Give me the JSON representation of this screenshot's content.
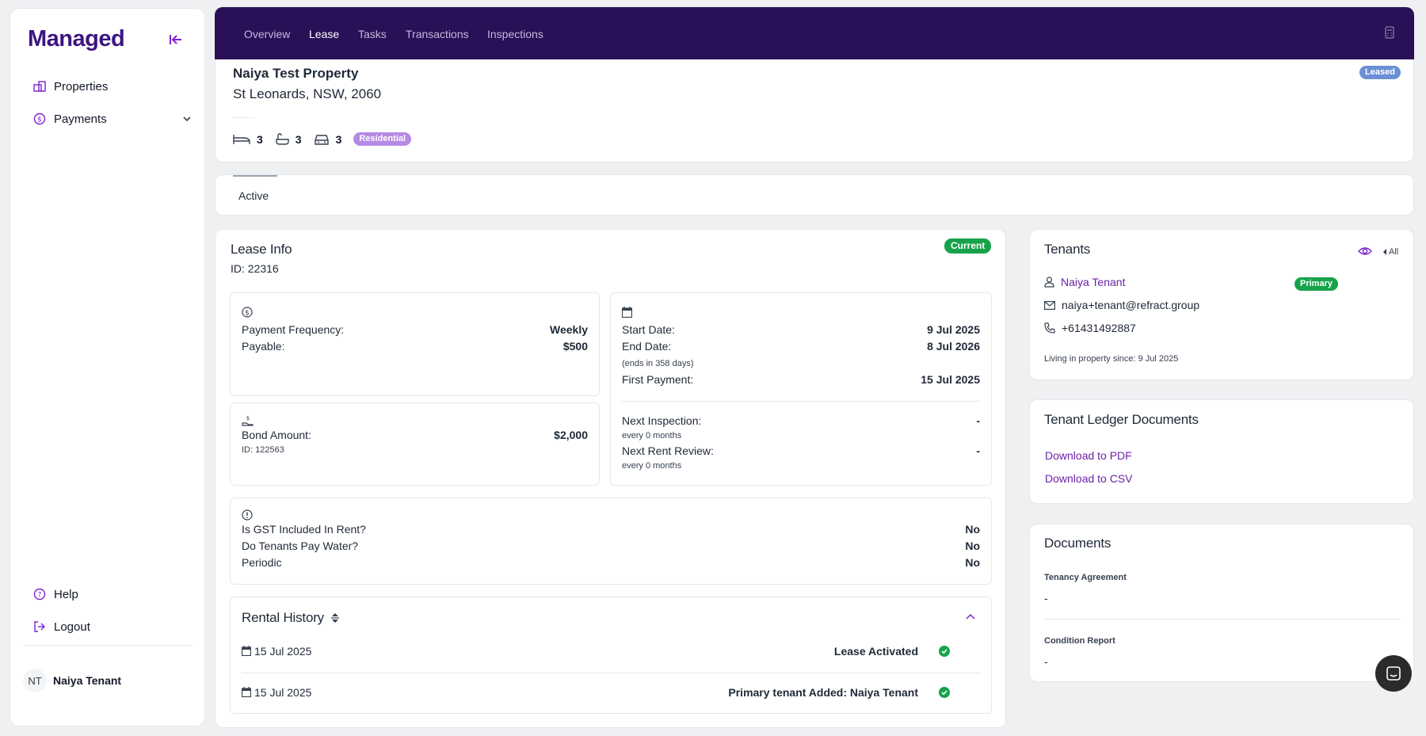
{
  "brand": {
    "logo_text": "Managed"
  },
  "sidebar": {
    "items": [
      {
        "label": "Properties",
        "icon": "properties-icon"
      },
      {
        "label": "Payments",
        "icon": "payments-icon"
      }
    ],
    "bottom_items": [
      {
        "label": "Help",
        "icon": "help-icon"
      },
      {
        "label": "Logout",
        "icon": "logout-icon"
      }
    ],
    "user": {
      "initials": "NT",
      "name": "Naiya Tenant"
    }
  },
  "header": {
    "tabs": [
      "Overview",
      "Lease",
      "Tasks",
      "Transactions",
      "Inspections"
    ],
    "active_tab": "Lease"
  },
  "property": {
    "name": "Naiya Test Property",
    "address": "St Leonards, NSW, 2060",
    "status_badge": "Leased",
    "bedrooms": "3",
    "bathrooms": "3",
    "parking": "3",
    "type_badge": "Residential"
  },
  "lease_tabs": {
    "active": "Active"
  },
  "lease_info": {
    "title": "Lease Info",
    "id_text": "ID: 22316",
    "status_badge": "Current",
    "payment": {
      "frequency_label": "Payment Frequency:",
      "frequency_value": "Weekly",
      "payable_label": "Payable:",
      "payable_value": "$500"
    },
    "bond": {
      "amount_label": "Bond Amount:",
      "amount_value": "$2,000",
      "id_text": "ID: 122563"
    },
    "dates": {
      "start_label": "Start Date:",
      "start_value": "9 Jul 2025",
      "end_label": "End Date:",
      "end_value": "8 Jul 2026",
      "ends_note": "(ends in 358 days)",
      "first_payment_label": "First Payment:",
      "first_payment_value": "15 Jul 2025",
      "next_inspection_label": "Next Inspection:",
      "next_inspection_value": "-",
      "next_inspection_note": "every 0 months",
      "next_review_label": "Next Rent Review:",
      "next_review_value": "-",
      "next_review_note": "every 0 months"
    },
    "flags": [
      {
        "label": "Is GST Included In Rent?",
        "value": "No"
      },
      {
        "label": "Do Tenants Pay Water?",
        "value": "No"
      },
      {
        "label": "Periodic",
        "value": "No"
      }
    ]
  },
  "rental_history": {
    "title": "Rental History",
    "rows": [
      {
        "date": "15 Jul 2025",
        "event": "Lease Activated"
      },
      {
        "date": "15 Jul 2025",
        "event": "Primary tenant Added: Naiya Tenant"
      }
    ]
  },
  "tenants": {
    "title": "Tenants",
    "all_label": "All",
    "name": "Naiya Tenant",
    "primary_badge": "Primary",
    "email": "naiya+tenant@refract.group",
    "phone": "+61431492887",
    "living_since": "Living in property since: 9 Jul 2025"
  },
  "ledger": {
    "title": "Tenant Ledger Documents",
    "pdf_link": "Download to PDF",
    "csv_link": "Download to CSV"
  },
  "documents": {
    "title": "Documents",
    "items": [
      {
        "label": "Tenancy Agreement",
        "value": "-"
      },
      {
        "label": "Condition Report",
        "value": "-"
      }
    ]
  },
  "colors": {
    "brand_purple": "#2a1057",
    "accent_purple": "#7e22ce",
    "success_green": "#16a34a",
    "leased_blue": "#6b8fd6",
    "residential_lilac": "#b58ae6"
  }
}
